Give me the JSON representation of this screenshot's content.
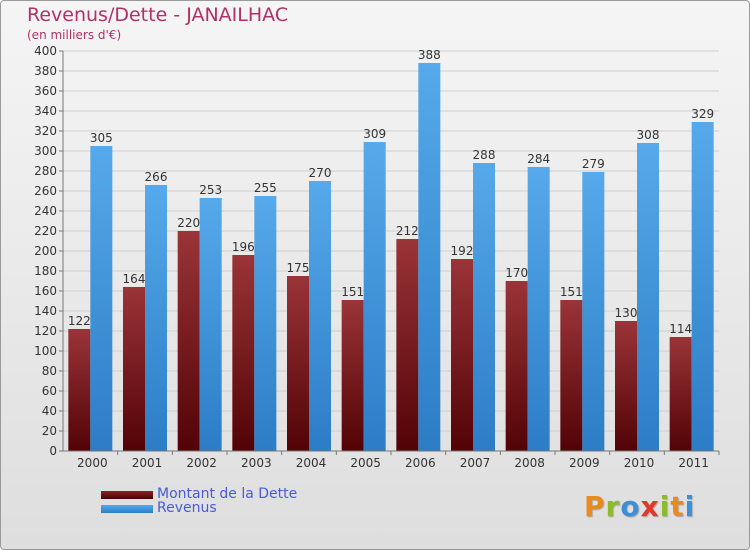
{
  "header": {
    "title": "Revenus/Dette - JANAILHAC",
    "subtitle": "(en milliers d'€)"
  },
  "legend": {
    "items": [
      {
        "label": "Montant de la Dette",
        "color": "#6b0e12"
      },
      {
        "label": "Revenus",
        "color": "#3a92de"
      }
    ]
  },
  "brand": {
    "name": "Proxiti",
    "letters": [
      {
        "char": "P",
        "color": "#e98a1f"
      },
      {
        "char": "r",
        "color": "#8dbb2a"
      },
      {
        "char": "o",
        "color": "#3e8fd6"
      },
      {
        "char": "x",
        "color": "#e03a2c"
      },
      {
        "char": "i",
        "color": "#8dbb2a"
      },
      {
        "char": "t",
        "color": "#e98a1f"
      },
      {
        "char": "i",
        "color": "#3e8fd6"
      }
    ]
  },
  "chart_data": {
    "type": "bar",
    "title": "Revenus/Dette - JANAILHAC",
    "subtitle": "(en milliers d'€)",
    "categories": [
      "2000",
      "2001",
      "2002",
      "2003",
      "2004",
      "2005",
      "2006",
      "2007",
      "2008",
      "2009",
      "2010",
      "2011"
    ],
    "series": [
      {
        "name": "Montant de la Dette",
        "color": "#6b0e12",
        "values": [
          122,
          164,
          220,
          196,
          175,
          151,
          212,
          192,
          170,
          151,
          130,
          114
        ]
      },
      {
        "name": "Revenus",
        "color": "#3a92de",
        "values": [
          305,
          266,
          253,
          255,
          270,
          309,
          388,
          288,
          284,
          279,
          308,
          329
        ]
      }
    ],
    "ylim": [
      0,
      400
    ],
    "ytick_step": 20,
    "grid": true,
    "legend_position": "bottom-left"
  }
}
